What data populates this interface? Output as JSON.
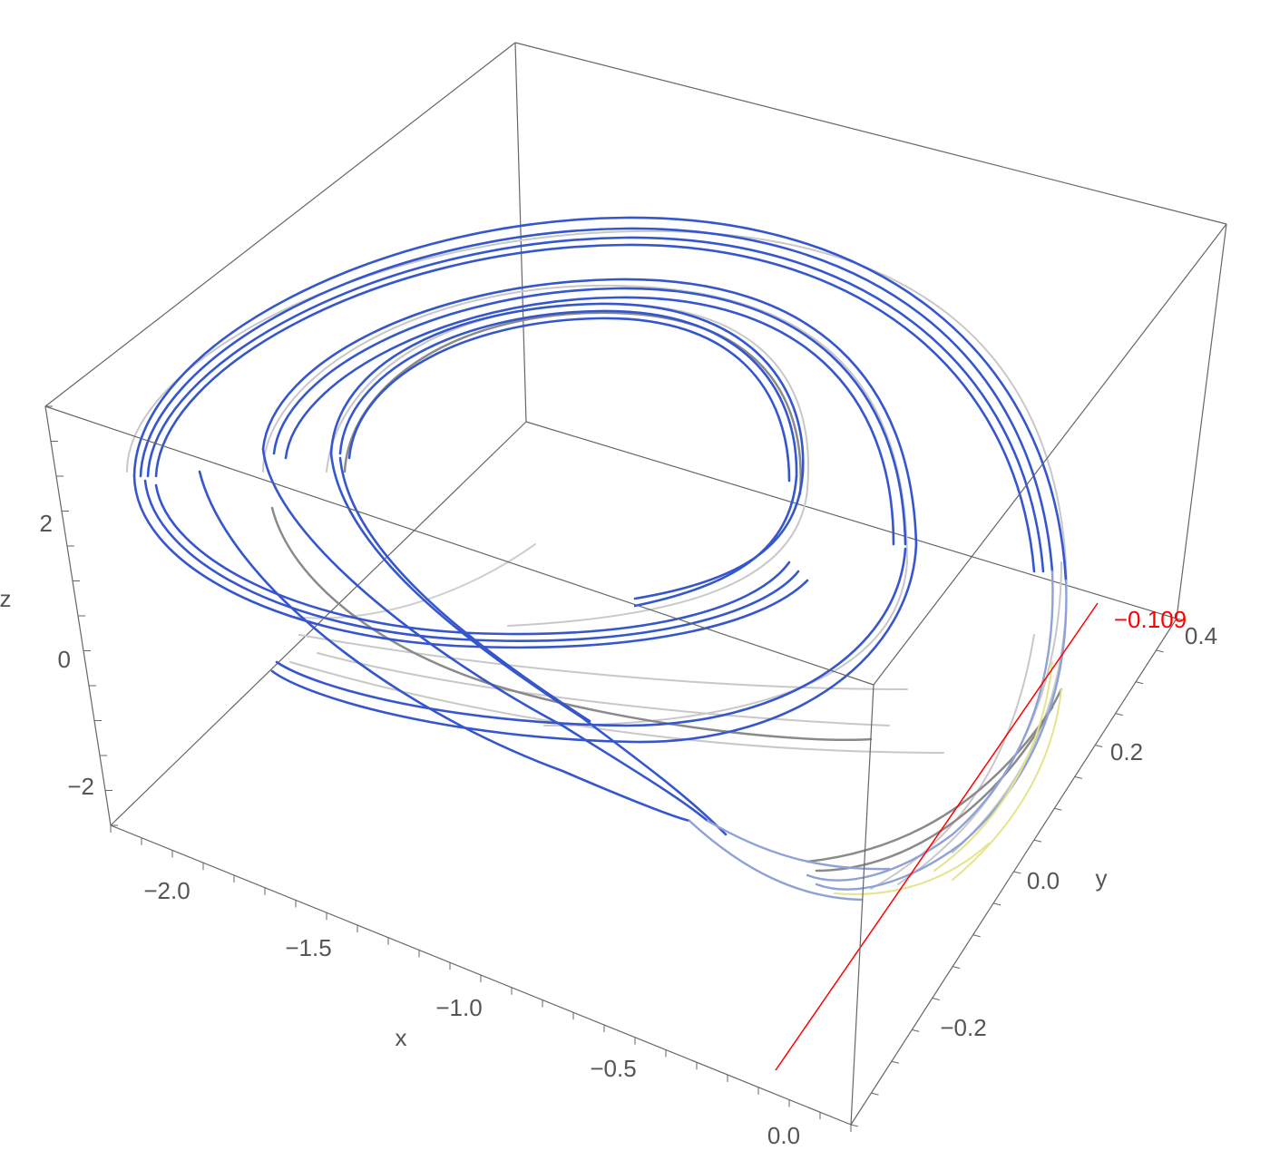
{
  "chart_data": {
    "type": "line",
    "dimensions": 3,
    "xlabel": "x",
    "ylabel": "y",
    "zlabel": "z",
    "x_ticks": [
      "−2.0",
      "−1.5",
      "−1.0",
      "−0.5",
      "0.0"
    ],
    "y_ticks": [
      "−0.2",
      "0.0",
      "0.2",
      "0.4"
    ],
    "z_ticks": [
      "−2",
      "0",
      "2"
    ],
    "xlim": [
      -2.25,
      0.1
    ],
    "ylim": [
      -0.4,
      0.42
    ],
    "zlim": [
      -2.8,
      3.2
    ],
    "grid": false,
    "box": true,
    "marker_line": {
      "y": -0.109,
      "label": "−0.109",
      "color": "#ff0000"
    },
    "colors": {
      "trajectory_front": "#3355cc",
      "trajectory_light": "#c0c0c0",
      "trajectory_dark": "#888888",
      "highlight": "#e4e48c",
      "box": "#666666"
    }
  }
}
